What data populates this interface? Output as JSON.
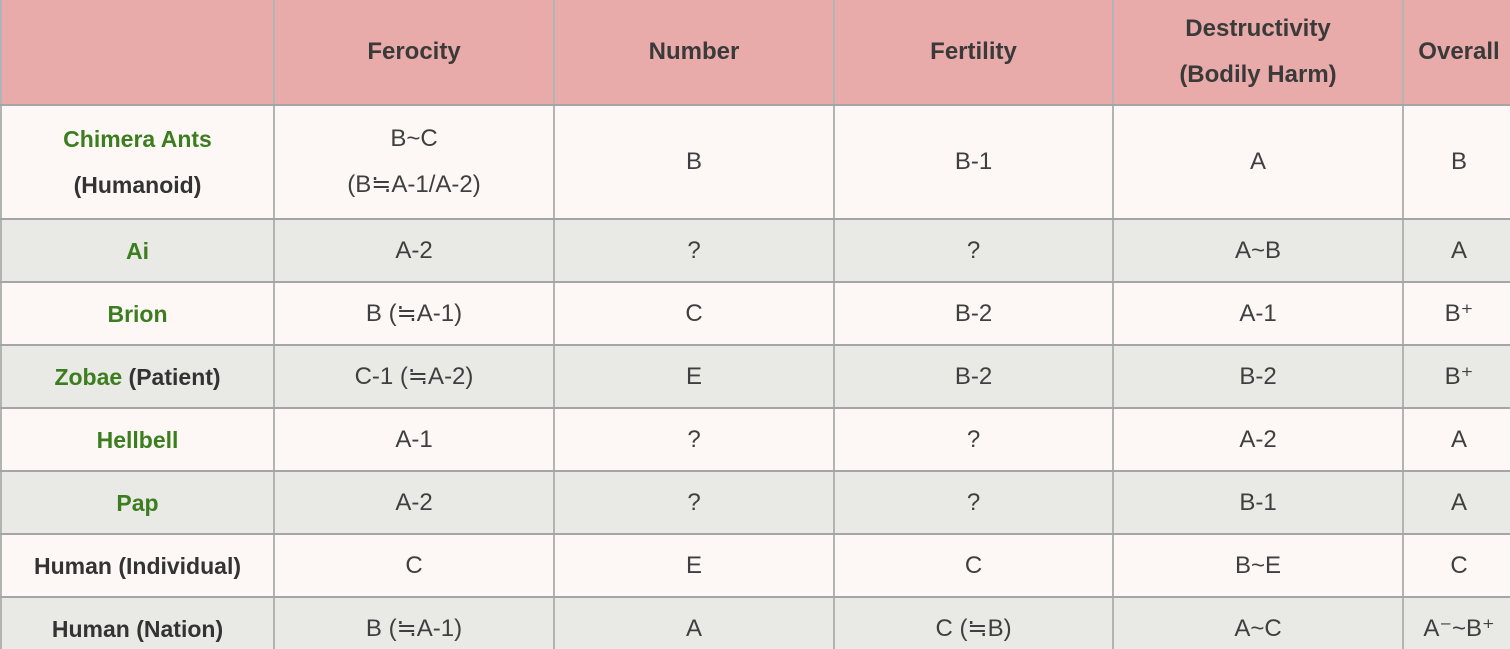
{
  "table": {
    "header": {
      "blank": "",
      "ferocity": "Ferocity",
      "number": "Number",
      "fertility": "Fertility",
      "destructivity_line1": "Destructivity",
      "destructivity_line2": "(Bodily Harm)",
      "overall": "Overall"
    },
    "cell_keys": [
      "ferocity",
      "number",
      "fertility",
      "destructivity",
      "overall"
    ],
    "rows": [
      {
        "name": [
          [
            {
              "text": "Chimera Ants",
              "green": true
            }
          ],
          [
            {
              "text": "(Humanoid)",
              "green": false
            }
          ]
        ],
        "cells": [
          [
            "B~C",
            "(B≒A-1/A-2)"
          ],
          [
            "B"
          ],
          [
            "B-1"
          ],
          [
            "A"
          ],
          [
            "B"
          ]
        ]
      },
      {
        "name": [
          [
            {
              "text": "Ai",
              "green": true
            }
          ]
        ],
        "cells": [
          [
            "A-2"
          ],
          [
            "?"
          ],
          [
            "?"
          ],
          [
            "A~B"
          ],
          [
            "A"
          ]
        ]
      },
      {
        "name": [
          [
            {
              "text": "Brion",
              "green": true
            }
          ]
        ],
        "cells": [
          [
            "B (≒A-1)"
          ],
          [
            "C"
          ],
          [
            "B-2"
          ],
          [
            "A-1"
          ],
          [
            "B⁺"
          ]
        ]
      },
      {
        "name": [
          [
            {
              "text": "Zobae",
              "green": true
            },
            {
              "text": " (Patient)",
              "green": false
            }
          ]
        ],
        "cells": [
          [
            "C-1 (≒A-2)"
          ],
          [
            "E"
          ],
          [
            "B-2"
          ],
          [
            "B-2"
          ],
          [
            "B⁺"
          ]
        ]
      },
      {
        "name": [
          [
            {
              "text": "Hellbell",
              "green": true
            }
          ]
        ],
        "cells": [
          [
            "A-1"
          ],
          [
            "?"
          ],
          [
            "?"
          ],
          [
            "A-2"
          ],
          [
            "A"
          ]
        ]
      },
      {
        "name": [
          [
            {
              "text": "Pap",
              "green": true
            }
          ]
        ],
        "cells": [
          [
            "A-2"
          ],
          [
            "?"
          ],
          [
            "?"
          ],
          [
            "B-1"
          ],
          [
            "A"
          ]
        ]
      },
      {
        "name": [
          [
            {
              "text": "Human (Individual)",
              "green": false
            }
          ]
        ],
        "cells": [
          [
            "C"
          ],
          [
            "E"
          ],
          [
            "C"
          ],
          [
            "B~E"
          ],
          [
            "C"
          ]
        ]
      },
      {
        "name": [
          [
            {
              "text": "Human (Nation)",
              "green": false
            }
          ]
        ],
        "cells": [
          [
            "B (≒A-1)"
          ],
          [
            "A"
          ],
          [
            "C (≒B)"
          ],
          [
            "A~C"
          ],
          [
            "A⁻~B⁺"
          ]
        ]
      }
    ],
    "colors": {
      "header_bg": "#e8abaa",
      "row_odd_bg": "#fdf8f6",
      "row_even_bg": "#e9e9e5",
      "name_green": "#3c7d1f",
      "text": "#3f3f3f",
      "border": "#a8a8a8"
    }
  }
}
